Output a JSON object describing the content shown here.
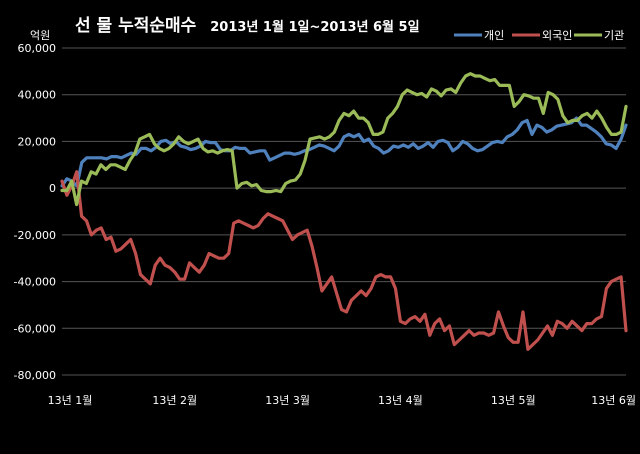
{
  "chart_data": {
    "type": "line",
    "title": "선 물 누적순매수",
    "subtitle": "2013년 1월 1일~2013년 6월 5일",
    "ylabel": "억원",
    "xlabel": "",
    "ylim": [
      -80000,
      60000
    ],
    "yticks": [
      60000,
      40000,
      20000,
      0,
      -20000,
      -40000,
      -60000,
      -80000
    ],
    "ytick_labels": [
      "60,000",
      "40,000",
      "20,000",
      "0",
      "-20,000",
      "-40,000",
      "-60,000",
      "-80,000"
    ],
    "xticks": [
      "13년 1월",
      "13년 2월",
      "13년 3월",
      "13년 4월",
      "13년 5월",
      "13년 6월"
    ],
    "grid": true,
    "legend_position": "top-right",
    "background": "#000000",
    "plot_background": "#000000",
    "grid_color": "#555555",
    "text_color": "#ffffff",
    "series": [
      {
        "name": "개인",
        "color": "#4f81bd",
        "values": [
          1000,
          4000,
          3000,
          1000,
          11000,
          13000,
          13000,
          13000,
          13000,
          12500,
          13500,
          13500,
          13000,
          14000,
          15000,
          14500,
          17000,
          17000,
          16000,
          17500,
          20000,
          20500,
          19000,
          20000,
          18000,
          17500,
          16500,
          17000,
          18000,
          20000,
          19500,
          19500,
          16500,
          16000,
          16000,
          17500,
          17000,
          17000,
          15000,
          15500,
          16000,
          16000,
          12000,
          13000,
          14000,
          15000,
          15000,
          14500,
          15000,
          16000,
          16500,
          17500,
          18500,
          18000,
          17000,
          16000,
          18000,
          22000,
          23000,
          22000,
          23000,
          20000,
          21000,
          18000,
          17000,
          15000,
          16000,
          18000,
          17500,
          18500,
          17500,
          19000,
          17000,
          18000,
          19500,
          17500,
          20000,
          20500,
          19500,
          16000,
          17500,
          20000,
          19000,
          17000,
          16000,
          16500,
          18000,
          19500,
          20000,
          19500,
          22000,
          23000,
          25000,
          28000,
          29000,
          23000,
          27000,
          26000,
          24000,
          25000,
          26500,
          27000,
          27500,
          28000,
          30000,
          27000,
          27000,
          25500,
          24000,
          22000,
          19000,
          18500,
          17000,
          21000,
          27000
        ]
      },
      {
        "name": "외국인",
        "color": "#c0504d",
        "values": [
          3000,
          -3000,
          1000,
          7000,
          -12000,
          -14000,
          -20000,
          -18000,
          -17000,
          -22000,
          -21000,
          -27000,
          -26000,
          -24000,
          -22000,
          -28000,
          -37000,
          -39000,
          -41000,
          -33000,
          -30000,
          -33000,
          -34000,
          -36000,
          -39000,
          -39000,
          -32000,
          -34000,
          -36000,
          -33000,
          -28000,
          -29000,
          -30000,
          -30000,
          -28000,
          -15000,
          -14000,
          -15000,
          -16000,
          -17000,
          -16000,
          -13000,
          -11000,
          -12000,
          -13000,
          -14000,
          -18000,
          -22000,
          -20000,
          -19000,
          -18000,
          -25000,
          -34000,
          -44000,
          -41000,
          -38000,
          -45000,
          -52000,
          -53000,
          -48000,
          -46000,
          -44000,
          -46000,
          -43000,
          -38000,
          -37000,
          -38000,
          -38000,
          -43000,
          -57000,
          -58000,
          -56000,
          -55000,
          -57000,
          -54000,
          -63000,
          -58000,
          -56000,
          -61000,
          -59000,
          -67000,
          -65000,
          -63000,
          -61000,
          -63000,
          -62000,
          -62000,
          -63000,
          -62000,
          -53000,
          -59000,
          -64000,
          -66000,
          -66000,
          -53000,
          -69000,
          -67000,
          -65000,
          -62000,
          -59000,
          -63000,
          -57000,
          -58000,
          -60000,
          -57000,
          -59000,
          -61000,
          -58000,
          -58000,
          -56000,
          -55000,
          -43000,
          -40000,
          -39000,
          -38000,
          -61000
        ]
      },
      {
        "name": "기관",
        "color": "#9bbb59",
        "values": [
          -1000,
          -1000,
          3000,
          -7000,
          3000,
          2000,
          7000,
          6000,
          10000,
          8000,
          10000,
          10000,
          9000,
          8000,
          12000,
          15000,
          21000,
          22000,
          23000,
          19000,
          17000,
          16000,
          17000,
          19000,
          22000,
          20000,
          19000,
          20000,
          21000,
          17000,
          15500,
          16000,
          15000,
          16000,
          16500,
          16000,
          0,
          2000,
          2500,
          1000,
          1500,
          -1000,
          -1500,
          -1500,
          -1000,
          -1500,
          2000,
          3000,
          3500,
          6000,
          12000,
          21000,
          21500,
          22000,
          21000,
          22000,
          24000,
          29000,
          32000,
          31000,
          33000,
          30000,
          30000,
          28000,
          23000,
          23000,
          24000,
          30000,
          32000,
          35000,
          40000,
          42000,
          41000,
          40000,
          40500,
          39000,
          42500,
          41500,
          39500,
          42000,
          42500,
          41000,
          45000,
          48000,
          49000,
          48000,
          48000,
          47000,
          46000,
          46500,
          44000,
          44000,
          44000,
          35000,
          37000,
          40000,
          39500,
          38500,
          38500,
          32000,
          41000,
          40000,
          38000,
          31000,
          28000,
          29000,
          29000,
          31000,
          32000,
          30000,
          33000,
          30000,
          26000,
          23000,
          23000,
          24000,
          35000
        ]
      }
    ]
  }
}
